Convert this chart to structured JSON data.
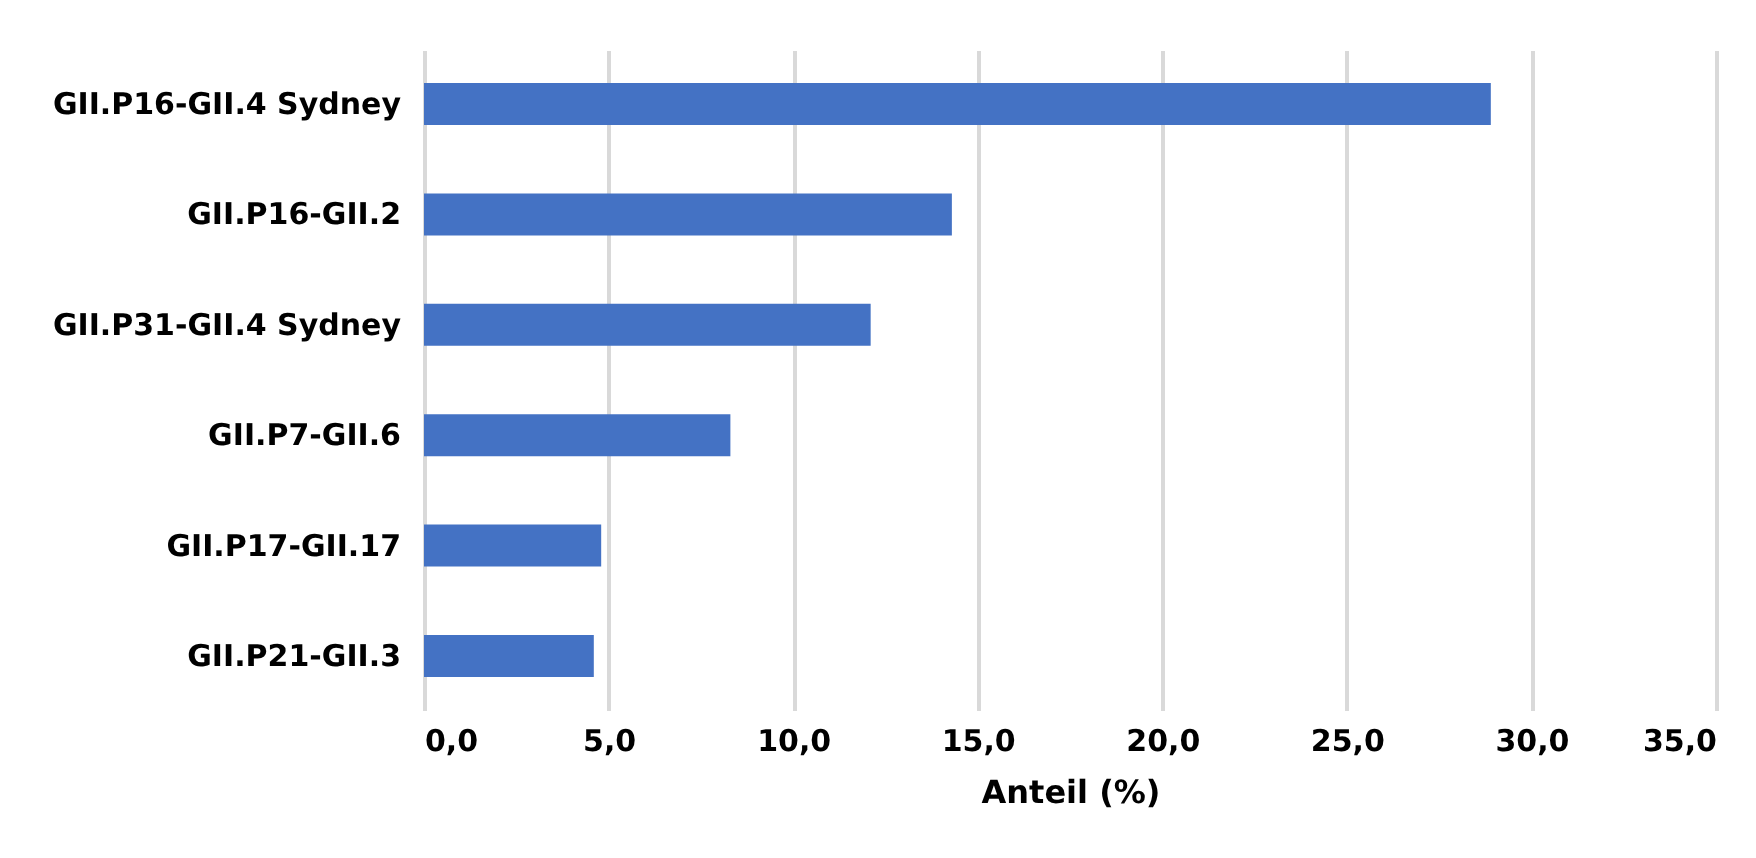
{
  "chart_data": {
    "type": "bar",
    "orientation": "horizontal",
    "xlabel": "Anteil (%)",
    "categories": [
      "GII.P16-GII.4 Sydney",
      "GII.P16-GII.2",
      "GII.P31-GII.4 Sydney",
      "GII.P7-GII.6",
      "GII.P17-GII.17",
      "GII.P21-GII.3"
    ],
    "values": [
      28.9,
      14.3,
      12.1,
      8.3,
      4.8,
      4.6
    ],
    "color": "#4472c4",
    "xlim": [
      0,
      35
    ],
    "xticks": [
      {
        "value": 0,
        "label": "0,0"
      },
      {
        "value": 5,
        "label": "5,0"
      },
      {
        "value": 10,
        "label": "10,0"
      },
      {
        "value": 15,
        "label": "15,0"
      },
      {
        "value": 20,
        "label": "20,0"
      },
      {
        "value": 25,
        "label": "25,0"
      },
      {
        "value": 30,
        "label": "30,0"
      },
      {
        "value": 35,
        "label": "35,0"
      }
    ],
    "grid": "x"
  }
}
